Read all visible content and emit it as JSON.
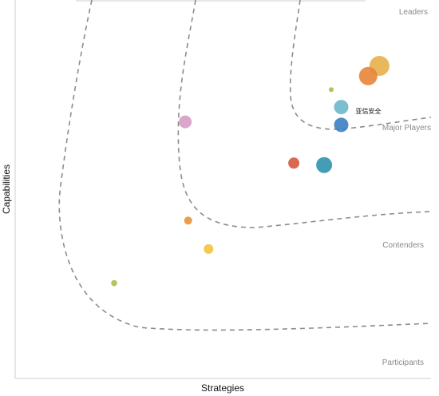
{
  "chart_data": {
    "type": "scatter",
    "title": "",
    "xlabel": "Strategies",
    "ylabel": "Capabilities",
    "xlim": [
      0,
      100
    ],
    "ylim": [
      0,
      100
    ],
    "grid": false,
    "legend": "none",
    "zones": [
      {
        "name": "Leaders"
      },
      {
        "name": "Major Players"
      },
      {
        "name": "Contenders"
      },
      {
        "name": "Participants"
      }
    ],
    "points": [
      {
        "label": "",
        "x": 87.6,
        "y": 82.6,
        "size": 12.5,
        "color": "#e8b04a"
      },
      {
        "label": "",
        "x": 84.9,
        "y": 79.9,
        "size": 11.5,
        "color": "#e8843a"
      },
      {
        "label": "",
        "x": 76.0,
        "y": 76.3,
        "size": 3,
        "color": "#b5b642"
      },
      {
        "label": "亚信安全",
        "x": 78.4,
        "y": 71.7,
        "size": 9,
        "color": "#6bb7cb"
      },
      {
        "label": "",
        "x": 78.4,
        "y": 67.0,
        "size": 9,
        "color": "#3b7ec1"
      },
      {
        "label": "",
        "x": 40.9,
        "y": 67.8,
        "size": 8,
        "color": "#d59cc7"
      },
      {
        "label": "",
        "x": 67.0,
        "y": 56.9,
        "size": 7,
        "color": "#d45a3f"
      },
      {
        "label": "",
        "x": 74.3,
        "y": 56.4,
        "size": 10,
        "color": "#2f94ad"
      },
      {
        "label": "",
        "x": 41.6,
        "y": 41.7,
        "size": 5,
        "color": "#e8943a"
      },
      {
        "label": "",
        "x": 46.5,
        "y": 34.2,
        "size": 6,
        "color": "#f2c43a"
      },
      {
        "label": "",
        "x": 23.8,
        "y": 25.2,
        "size": 3.8,
        "color": "#a8c04a"
      }
    ]
  }
}
